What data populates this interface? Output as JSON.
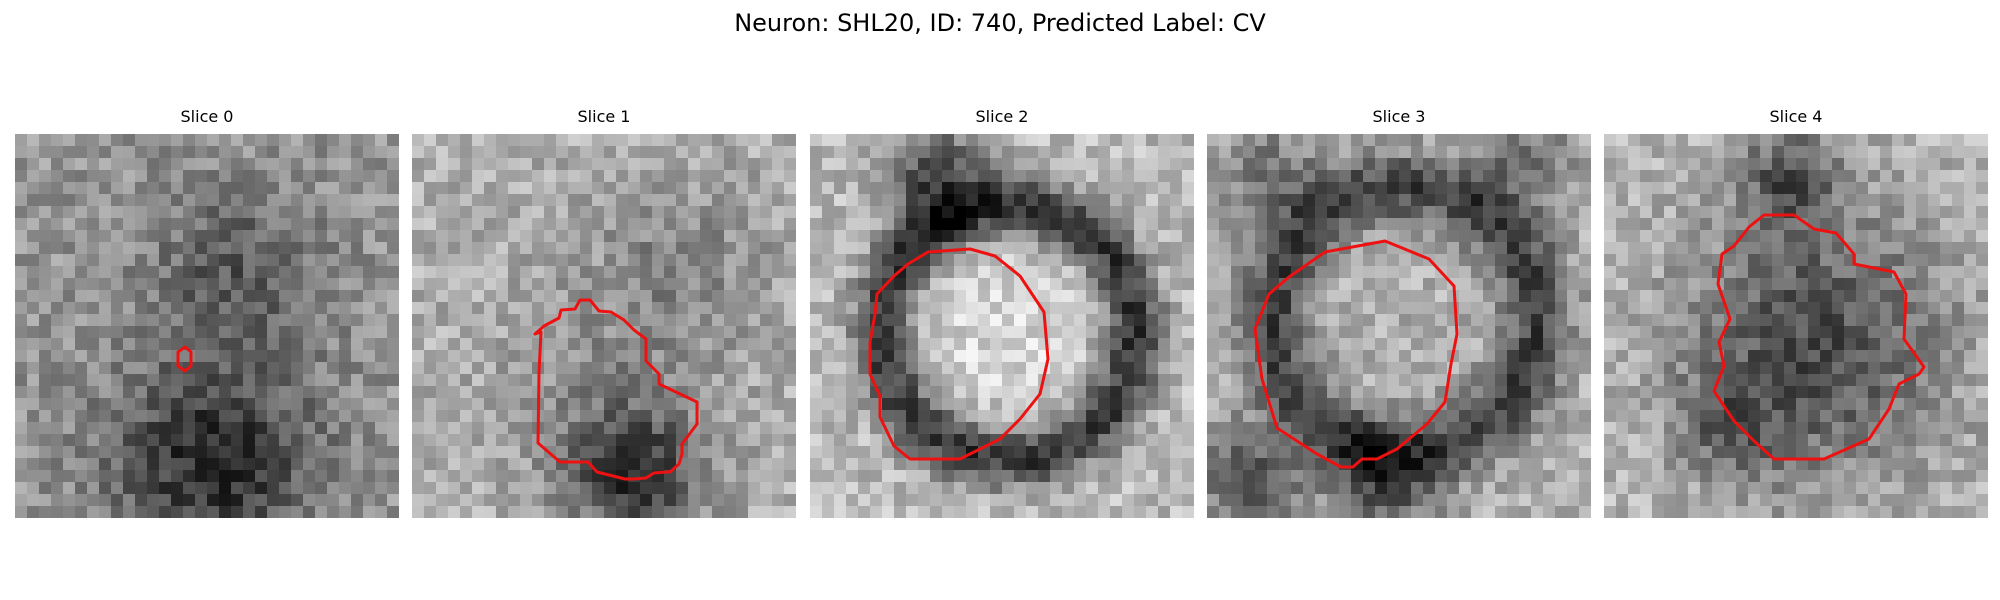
{
  "figure": {
    "title": "Neuron: SHL20, ID: 740, Predicted Label: CV"
  },
  "style": {
    "contour_color": "#ee1111",
    "colormap": "gray"
  },
  "panels": [
    {
      "title": "Slice 0",
      "dark_blobs": [
        "top-center medium-dark",
        "bottom-center dark"
      ],
      "contour": "tiny"
    },
    {
      "title": "Slice 1",
      "dark_blobs": [
        "bottom-right dark",
        "top-right gray"
      ],
      "contour": "medium"
    },
    {
      "title": "Slice 2",
      "dark_blobs": [
        "dark ring",
        "top-left dark"
      ],
      "contour": "large ring"
    },
    {
      "title": "Slice 3",
      "dark_blobs": [
        "dark ring",
        "top corners dark",
        "bottom-left dark"
      ],
      "contour": "large ring"
    },
    {
      "title": "Slice 4",
      "dark_blobs": [
        "center dark mass",
        "top-center dark"
      ],
      "contour": "medium-large"
    }
  ]
}
